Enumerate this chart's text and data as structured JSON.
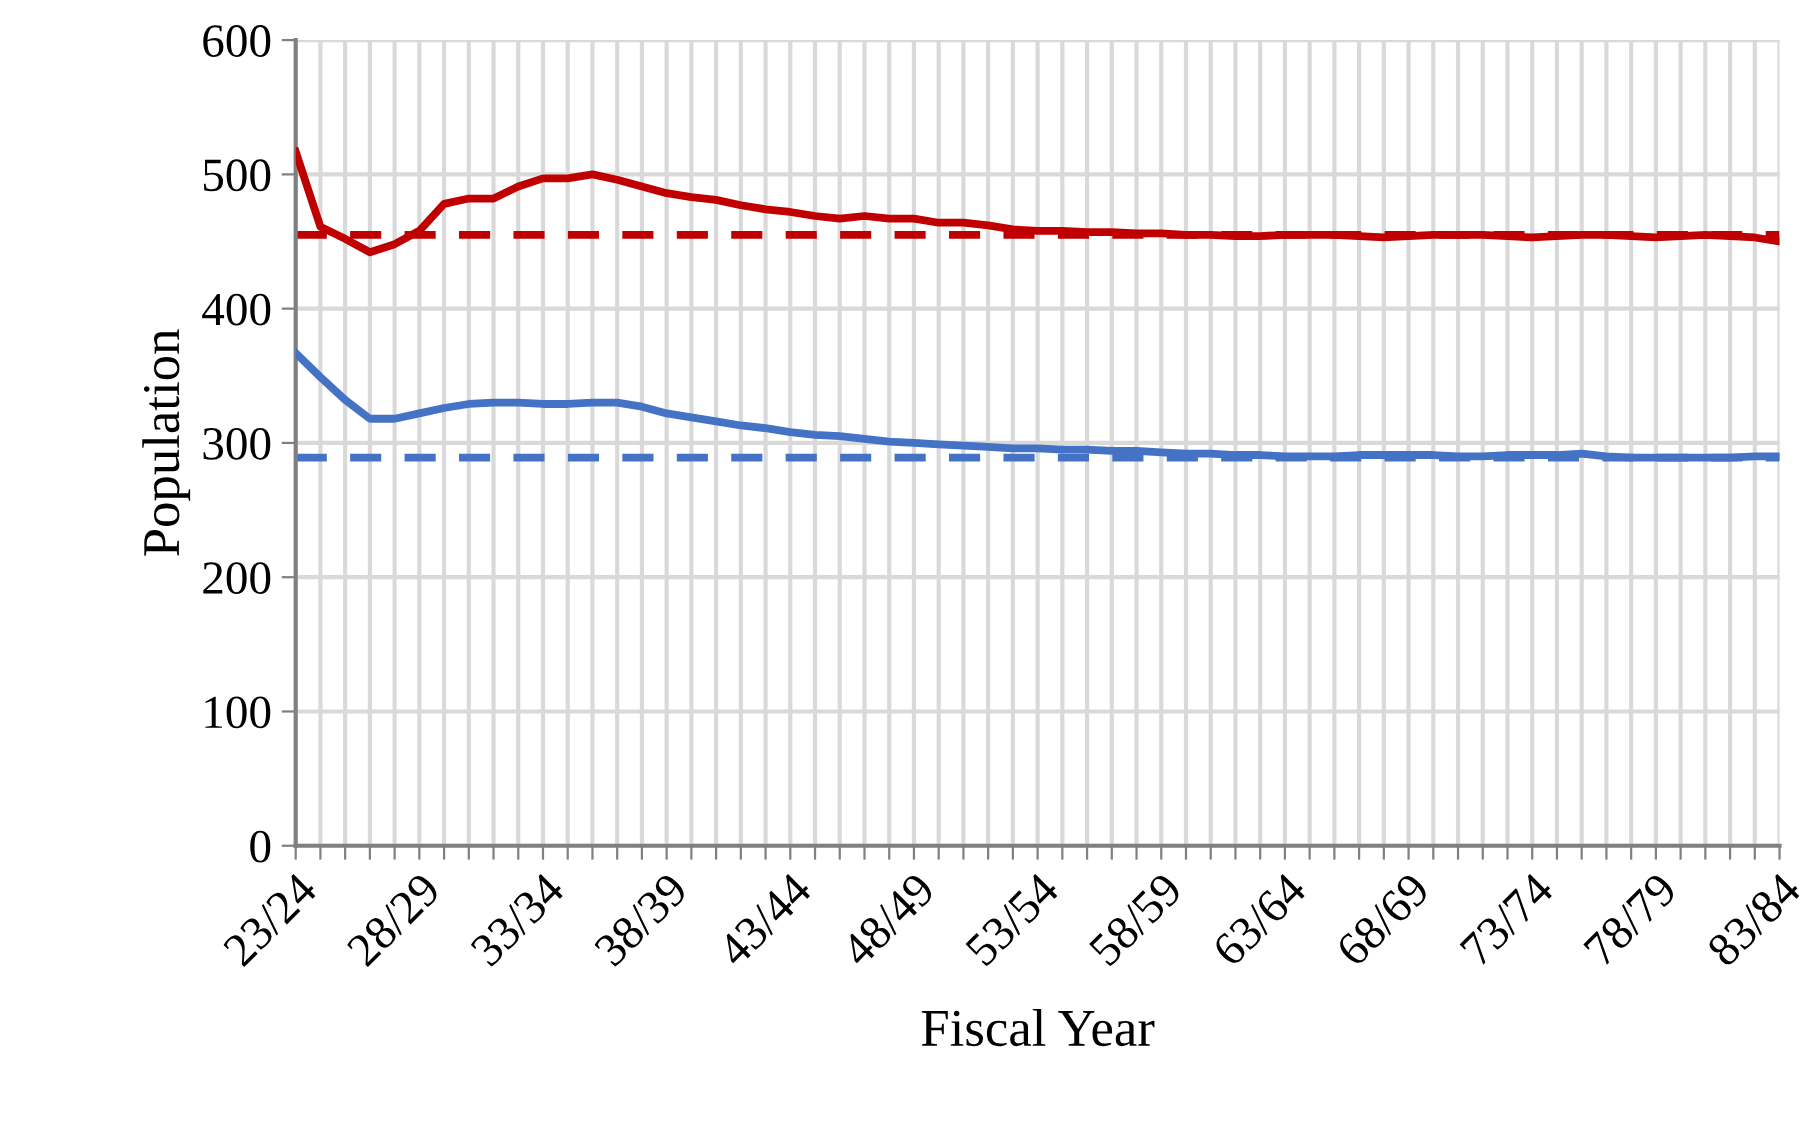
{
  "chart_data": {
    "type": "line",
    "xlabel": "Fiscal Year",
    "ylabel": "Population",
    "categories": [
      "23/24",
      null,
      null,
      null,
      null,
      "28/29",
      null,
      null,
      null,
      null,
      "33/34",
      null,
      null,
      null,
      null,
      "38/39",
      null,
      null,
      null,
      null,
      "43/44",
      null,
      null,
      null,
      null,
      "48/49",
      null,
      null,
      null,
      null,
      "53/54",
      null,
      null,
      null,
      null,
      "58/59",
      null,
      null,
      null,
      null,
      "63/64",
      null,
      null,
      null,
      null,
      "68/69",
      null,
      null,
      null,
      null,
      "73/74",
      null,
      null,
      null,
      null,
      "78/79",
      null,
      null,
      null,
      null,
      "83/84"
    ],
    "series": [
      {
        "color": "#c00000",
        "values": [
          517,
          461,
          452,
          442,
          448,
          458,
          478,
          482,
          482,
          491,
          497,
          497,
          500,
          496,
          491,
          486,
          483,
          481,
          477,
          474,
          472,
          469,
          467,
          469,
          467,
          467,
          464,
          464,
          462,
          459,
          458,
          458,
          457,
          457,
          456,
          456,
          455,
          455,
          454,
          454,
          455,
          455,
          455,
          454,
          453,
          454,
          455,
          455,
          455,
          454,
          453,
          454,
          455,
          455,
          454,
          453,
          454,
          455,
          454,
          453,
          450
        ]
      },
      {
        "color": "#4472c4",
        "values": [
          367,
          349,
          332,
          318,
          318,
          322,
          326,
          329,
          330,
          330,
          329,
          329,
          330,
          330,
          327,
          322,
          319,
          316,
          313,
          311,
          308,
          306,
          305,
          303,
          301,
          300,
          299,
          298,
          297,
          296,
          296,
          295,
          295,
          294,
          294,
          293,
          292,
          292,
          291,
          291,
          290,
          290,
          290,
          291,
          291,
          291,
          291,
          290,
          290,
          291,
          291,
          291,
          292,
          290,
          289,
          289,
          289,
          289,
          289,
          290,
          290
        ]
      }
    ],
    "ref_lines": [
      {
        "axis": "y",
        "value": 455,
        "color": "#c00000",
        "line_style": "dashed"
      },
      {
        "axis": "y",
        "value": 289,
        "color": "#4472c4",
        "line_style": "dashed"
      }
    ],
    "ylim": [
      0,
      600
    ],
    "yticks": [
      0,
      100,
      200,
      300,
      400,
      500,
      600
    ],
    "grid": true,
    "line_style": "solid",
    "marker": "none",
    "legend": false
  }
}
